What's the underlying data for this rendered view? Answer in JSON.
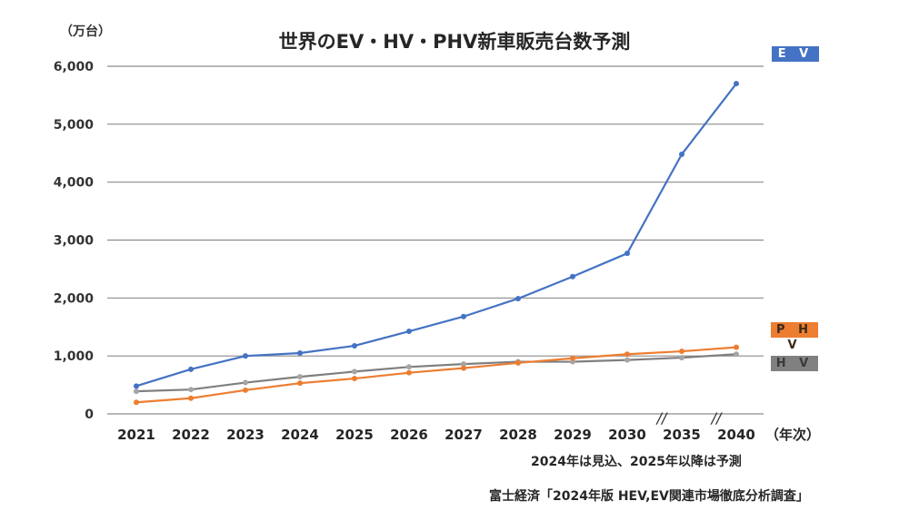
{
  "chart_data": {
    "type": "line",
    "title": "世界のEV・HV・PHV新車販売台数予測",
    "ylabel": "（万台）",
    "xlabel": "（年次）",
    "categories": [
      "2021",
      "2022",
      "2023",
      "2024",
      "2025",
      "2026",
      "2027",
      "2028",
      "2029",
      "2030",
      "2035",
      "2040"
    ],
    "ylim": [
      0,
      6000
    ],
    "yticks": [
      "0",
      "1,000",
      "2,000",
      "3,000",
      "4,000",
      "5,000",
      "6,000"
    ],
    "ytick_values": [
      0,
      1000,
      2000,
      3000,
      4000,
      5000,
      6000
    ],
    "grid": true,
    "axis_breaks_after": [
      "2030",
      "2035"
    ],
    "axis_break_symbol": "//",
    "series": [
      {
        "name": "EV",
        "legend_label": "E V",
        "color": "#4472C4",
        "values": [
          480,
          770,
          1000,
          1050,
          1175,
          1425,
          1680,
          1990,
          2370,
          2770,
          4480,
          5700
        ]
      },
      {
        "name": "PHV",
        "legend_label": "P H V",
        "color": "#ED7D31",
        "values": [
          200,
          270,
          410,
          530,
          610,
          710,
          790,
          880,
          960,
          1030,
          1080,
          1150
        ]
      },
      {
        "name": "HV",
        "legend_label": "H V",
        "color": "#7F7F7F",
        "marker_color": "#A5A5A5",
        "values": [
          390,
          420,
          540,
          640,
          730,
          810,
          860,
          900,
          900,
          930,
          970,
          1030
        ]
      }
    ],
    "legend": "right"
  },
  "notes": {
    "forecast_note": "2024年は見込、2025年以降は予測",
    "source": "富士経済「2024年版 HEV,EV関連市場徹底分析調査」"
  }
}
